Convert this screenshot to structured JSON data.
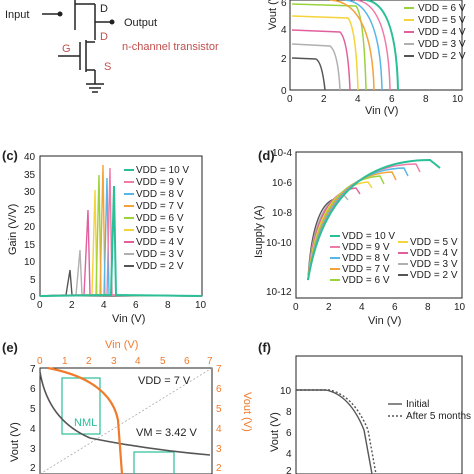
{
  "schematic": {
    "input": "Input",
    "output": "Output",
    "d1": "D",
    "d2": "D",
    "g": "G",
    "s": "S",
    "note": "n-channel transistor"
  },
  "colors": {
    "v10": "#2bbf98",
    "v9": "#f07aa8",
    "v8": "#56b6e8",
    "v7": "#f2a33a",
    "v6": "#9bd33d",
    "v5": "#f5d33a",
    "v4": "#e05f9c",
    "v3": "#b0b0b0",
    "v2": "#555555",
    "orange": "#f07b2d"
  },
  "panels": {
    "b": {
      "ylabel": "Vout (V)",
      "xlabel": "Vin (V)",
      "xticks": [
        "0",
        "2",
        "4",
        "6",
        "8",
        "10"
      ],
      "yticks": [
        "0",
        "2",
        "4",
        "6"
      ],
      "legend": [
        "VDD = 6 V",
        "VDD = 5 V",
        "VDD = 4 V",
        "VDD = 3 V",
        "VDD = 2 V"
      ]
    },
    "c": {
      "label": "(c)",
      "ylabel": "Gain (V/V)",
      "xlabel": "Vin (V)",
      "xticks": [
        "0",
        "2",
        "4",
        "6",
        "8",
        "10"
      ],
      "yticks": [
        "0",
        "5",
        "10",
        "15",
        "20",
        "25",
        "30",
        "35",
        "40"
      ],
      "legend": [
        "VDD = 10 V",
        "VDD = 9 V",
        "VDD = 8 V",
        "VDD = 7 V",
        "VDD = 6 V",
        "VDD = 5 V",
        "VDD = 4 V",
        "VDD = 3 V",
        "VDD = 2 V"
      ]
    },
    "d": {
      "label": "(d)",
      "ylabel": "Isupply (A)",
      "xlabel": "Vin (V)",
      "xticks": [
        "0",
        "2",
        "4",
        "6",
        "8",
        "10"
      ],
      "yticks": [
        "10-4",
        "10-6",
        "10-8",
        "10-10",
        "10-12"
      ],
      "legend_left": [
        "VDD = 10 V",
        "VDD = 9 V",
        "VDD = 8 V",
        "VDD = 7 V",
        "VDD = 6 V"
      ],
      "legend_right": [
        "VDD = 5 V",
        "VDD = 4 V",
        "VDD = 3 V",
        "VDD = 2 V"
      ]
    },
    "e": {
      "label": "(e)",
      "top_label": "Vin (V)",
      "right_label": "Vout (V)",
      "ylabel": "Vout (V)",
      "top_ticks": [
        "0",
        "1",
        "2",
        "3",
        "4",
        "5",
        "6",
        "7"
      ],
      "right_ticks": [
        "7",
        "6",
        "5",
        "4",
        "3",
        "2"
      ],
      "left_ticks": [
        "7",
        "6",
        "5",
        "4",
        "3",
        "2"
      ],
      "vdd": "VDD = 7 V",
      "vm": "VM = 3.42 V",
      "nml": "NML"
    },
    "f": {
      "label": "(f)",
      "ylabel": "Vout (V)",
      "yticks": [
        "10",
        "8",
        "6",
        "4",
        "2"
      ],
      "legend": [
        "Initial",
        "After 5 months"
      ]
    }
  }
}
